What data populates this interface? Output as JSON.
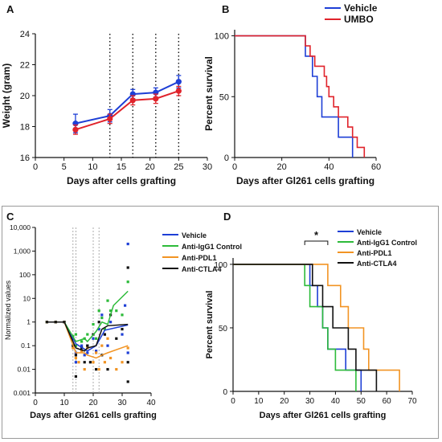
{
  "panels": [
    "A",
    "B",
    "C",
    "D"
  ],
  "chart_data": [
    {
      "panel": "A",
      "type": "line",
      "title": "",
      "xlabel": "Days after cells grafting",
      "ylabel": "Weight (gram)",
      "xlim": [
        0,
        30
      ],
      "ylim": [
        16,
        24
      ],
      "xticks": [
        0,
        5,
        10,
        15,
        20,
        25,
        30
      ],
      "yticks": [
        16,
        18,
        20,
        22,
        24
      ],
      "vlines": [
        13,
        17,
        21,
        25
      ],
      "series": [
        {
          "color": "#1e3fd6",
          "x": [
            7,
            13,
            17,
            21,
            25
          ],
          "y": [
            18.2,
            18.7,
            20.1,
            20.2,
            20.9
          ],
          "err": [
            0.6,
            0.4,
            0.3,
            0.3,
            0.4
          ]
        },
        {
          "color": "#e0232b",
          "x": [
            7,
            13,
            17,
            21,
            25
          ],
          "y": [
            17.8,
            18.5,
            19.7,
            19.8,
            20.3
          ],
          "err": [
            0.3,
            0.3,
            0.3,
            0.3,
            0.3
          ]
        }
      ]
    },
    {
      "panel": "B",
      "type": "line",
      "title": "",
      "xlabel": "Days after Gl261 cells grafting",
      "ylabel": "Percent survival",
      "xlim": [
        0,
        60
      ],
      "ylim": [
        0,
        105
      ],
      "xticks": [
        0,
        20,
        40,
        60
      ],
      "yticks": [
        0,
        50,
        100
      ],
      "legend_position": "top-right",
      "series": [
        {
          "name": "Vehicle",
          "color": "#1e3fd6",
          "steps": [
            [
              0,
              100
            ],
            [
              30,
              100
            ],
            [
              30,
              83.3
            ],
            [
              33,
              83.3
            ],
            [
              33,
              66.7
            ],
            [
              35,
              66.7
            ],
            [
              35,
              50
            ],
            [
              37,
              50
            ],
            [
              37,
              33.3
            ],
            [
              44,
              33.3
            ],
            [
              44,
              16.7
            ],
            [
              50,
              16.7
            ],
            [
              50,
              0
            ]
          ]
        },
        {
          "name": "UMBO",
          "color": "#e0232b",
          "steps": [
            [
              0,
              100
            ],
            [
              30,
              100
            ],
            [
              30,
              91.7
            ],
            [
              32,
              91.7
            ],
            [
              32,
              83.3
            ],
            [
              34,
              83.3
            ],
            [
              34,
              75
            ],
            [
              38,
              75
            ],
            [
              38,
              66.7
            ],
            [
              39,
              66.7
            ],
            [
              39,
              58.3
            ],
            [
              40,
              58.3
            ],
            [
              40,
              50
            ],
            [
              42,
              50
            ],
            [
              42,
              41.7
            ],
            [
              44,
              41.7
            ],
            [
              44,
              33.3
            ],
            [
              48,
              33.3
            ],
            [
              48,
              25
            ],
            [
              50,
              25
            ],
            [
              50,
              16.7
            ],
            [
              52,
              16.7
            ],
            [
              52,
              8.3
            ],
            [
              55,
              8.3
            ],
            [
              55,
              0
            ]
          ]
        }
      ]
    },
    {
      "panel": "C",
      "type": "scatter",
      "title": "",
      "xlabel": "Days after Gl261 cells grafting",
      "ylabel": "Normalized values",
      "yscale": "log",
      "xlim": [
        0,
        40
      ],
      "ylim": [
        0.001,
        10000
      ],
      "xticks": [
        0,
        10,
        20,
        30,
        40
      ],
      "ytick_labels": [
        "0.001",
        "0.01",
        "0.1",
        "1",
        "10",
        "100",
        "1,000",
        "10,000"
      ],
      "vlines": [
        13,
        14,
        20,
        22
      ],
      "legend_position": "top-right",
      "series": [
        {
          "name": "Vehicle",
          "color": "#1e3fd6",
          "line": [
            [
              4,
              1
            ],
            [
              7,
              1
            ],
            [
              10,
              1
            ],
            [
              14,
              0.12
            ],
            [
              18,
              0.06
            ],
            [
              21,
              0.1
            ],
            [
              24,
              0.45
            ],
            [
              32,
              0.75
            ]
          ],
          "points": [
            [
              4,
              1
            ],
            [
              7,
              1
            ],
            [
              10,
              1
            ],
            [
              13,
              0.2
            ],
            [
              14,
              0.05
            ],
            [
              14,
              0.02
            ],
            [
              16,
              0.1
            ],
            [
              17,
              0.04
            ],
            [
              18,
              0.1
            ],
            [
              18,
              0.05
            ],
            [
              20,
              0.2
            ],
            [
              21,
              0.06
            ],
            [
              22,
              0.5
            ],
            [
              23,
              2
            ],
            [
              24,
              0.3
            ],
            [
              25,
              0.1
            ],
            [
              26,
              1
            ],
            [
              30,
              0.3
            ],
            [
              31,
              5
            ],
            [
              32,
              2000
            ],
            [
              32,
              0.05
            ]
          ]
        },
        {
          "name": "Anti-IgG1 Control",
          "color": "#2dbb3a",
          "line": [
            [
              4,
              1
            ],
            [
              7,
              1
            ],
            [
              10,
              1
            ],
            [
              14,
              0.15
            ],
            [
              17,
              0.2
            ],
            [
              18,
              0.15
            ],
            [
              21,
              0.4
            ],
            [
              23,
              1
            ],
            [
              25,
              0.8
            ],
            [
              27,
              5
            ],
            [
              32,
              20
            ]
          ],
          "points": [
            [
              4,
              1
            ],
            [
              7,
              1
            ],
            [
              10,
              1
            ],
            [
              13,
              0.25
            ],
            [
              14,
              0.1
            ],
            [
              14,
              0.3
            ],
            [
              16,
              0.15
            ],
            [
              17,
              0.2
            ],
            [
              18,
              0.3
            ],
            [
              20,
              0.8
            ],
            [
              21,
              0.2
            ],
            [
              22,
              3
            ],
            [
              23,
              1.5
            ],
            [
              24,
              0.5
            ],
            [
              25,
              8
            ],
            [
              26,
              3
            ],
            [
              28,
              3
            ],
            [
              30,
              2
            ],
            [
              32,
              50
            ]
          ]
        },
        {
          "name": "Anti-PDL1",
          "color": "#f29423",
          "line": [
            [
              4,
              1
            ],
            [
              7,
              1
            ],
            [
              10,
              1
            ],
            [
              14,
              0.05
            ],
            [
              17,
              0.05
            ],
            [
              18,
              0.04
            ],
            [
              21,
              0.03
            ],
            [
              23,
              0.04
            ],
            [
              25,
              0.05
            ],
            [
              32,
              0.1
            ]
          ],
          "points": [
            [
              4,
              1
            ],
            [
              7,
              1
            ],
            [
              10,
              1
            ],
            [
              13,
              0.08
            ],
            [
              14,
              0.03
            ],
            [
              15,
              0.02
            ],
            [
              16,
              0.06
            ],
            [
              17,
              0.01
            ],
            [
              18,
              0.08
            ],
            [
              20,
              0.02
            ],
            [
              21,
              0.05
            ],
            [
              22,
              0.01
            ],
            [
              23,
              0.1
            ],
            [
              24,
              0.02
            ],
            [
              25,
              0.2
            ],
            [
              26,
              0.03
            ],
            [
              28,
              0.01
            ],
            [
              30,
              0.02
            ],
            [
              32,
              0.08
            ]
          ]
        },
        {
          "name": "Anti-CTLA4",
          "color": "#111111",
          "line": [
            [
              4,
              1
            ],
            [
              7,
              1
            ],
            [
              10,
              1
            ],
            [
              14,
              0.08
            ],
            [
              17,
              0.06
            ],
            [
              18,
              0.08
            ],
            [
              21,
              0.1
            ],
            [
              23,
              0.5
            ],
            [
              25,
              0.7
            ],
            [
              32,
              0.8
            ]
          ],
          "points": [
            [
              4,
              1
            ],
            [
              7,
              1
            ],
            [
              10,
              1
            ],
            [
              13,
              0.1
            ],
            [
              14,
              0.005
            ],
            [
              14,
              0.04
            ],
            [
              16,
              0.08
            ],
            [
              17,
              0.02
            ],
            [
              18,
              0.1
            ],
            [
              19,
              0.02
            ],
            [
              20,
              0.3
            ],
            [
              21,
              0.01
            ],
            [
              22,
              1
            ],
            [
              23,
              0.04
            ],
            [
              24,
              0.3
            ],
            [
              25,
              0.01
            ],
            [
              26,
              2
            ],
            [
              28,
              0.2
            ],
            [
              30,
              0.5
            ],
            [
              32,
              200
            ],
            [
              32,
              0.02
            ],
            [
              32,
              0.003
            ]
          ]
        }
      ]
    },
    {
      "panel": "D",
      "type": "line",
      "title": "",
      "xlabel": "Days after Gl261 cells grafting",
      "ylabel": "Percent survival",
      "xlim": [
        0,
        70
      ],
      "ylim": [
        0,
        105
      ],
      "xticks": [
        0,
        10,
        20,
        30,
        40,
        50,
        60,
        70
      ],
      "yticks": [
        0,
        50,
        100
      ],
      "annotation": "*",
      "annotation_span": [
        28,
        37
      ],
      "legend_position": "top-right",
      "series": [
        {
          "name": "Vehicle",
          "color": "#1e3fd6",
          "steps": [
            [
              0,
              100
            ],
            [
              30,
              100
            ],
            [
              30,
              83.3
            ],
            [
              33,
              83.3
            ],
            [
              33,
              66.7
            ],
            [
              35,
              66.7
            ],
            [
              35,
              50
            ],
            [
              37,
              50
            ],
            [
              37,
              33.3
            ],
            [
              44,
              33.3
            ],
            [
              44,
              16.7
            ],
            [
              50,
              16.7
            ],
            [
              50,
              0
            ]
          ]
        },
        {
          "name": "Anti-IgG1 Control",
          "color": "#2dbb3a",
          "steps": [
            [
              0,
              100
            ],
            [
              28,
              100
            ],
            [
              28,
              83.3
            ],
            [
              30,
              83.3
            ],
            [
              30,
              66.7
            ],
            [
              35,
              66.7
            ],
            [
              35,
              50
            ],
            [
              37,
              50
            ],
            [
              37,
              33.3
            ],
            [
              40,
              33.3
            ],
            [
              40,
              16.7
            ],
            [
              48,
              16.7
            ],
            [
              48,
              0
            ]
          ]
        },
        {
          "name": "Anti-PDL1",
          "color": "#f29423",
          "steps": [
            [
              0,
              100
            ],
            [
              37,
              100
            ],
            [
              37,
              83.3
            ],
            [
              42,
              83.3
            ],
            [
              42,
              66.7
            ],
            [
              45,
              66.7
            ],
            [
              45,
              50
            ],
            [
              51,
              50
            ],
            [
              51,
              33.3
            ],
            [
              53,
              33.3
            ],
            [
              53,
              16.7
            ],
            [
              65,
              16.7
            ],
            [
              65,
              0
            ]
          ]
        },
        {
          "name": "Anti-CTLA4",
          "color": "#111111",
          "steps": [
            [
              0,
              100
            ],
            [
              31,
              100
            ],
            [
              31,
              83.3
            ],
            [
              35,
              83.3
            ],
            [
              35,
              66.7
            ],
            [
              39,
              66.7
            ],
            [
              39,
              50
            ],
            [
              45,
              50
            ],
            [
              45,
              33.3
            ],
            [
              48,
              33.3
            ],
            [
              48,
              16.7
            ],
            [
              56,
              16.7
            ],
            [
              56,
              0
            ]
          ]
        }
      ]
    }
  ]
}
